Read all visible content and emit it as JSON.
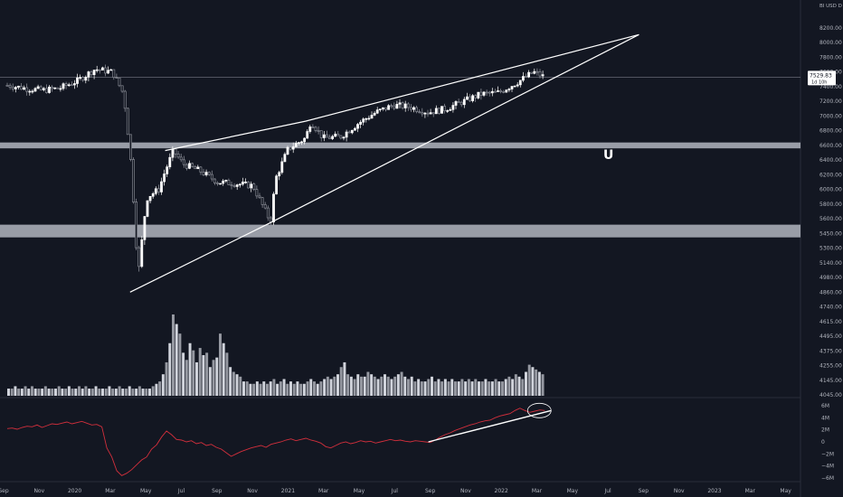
{
  "chart_data": [
    {
      "type": "candlestick",
      "axis_unit_label": "BI USD D",
      "y_ticks": [
        8200,
        8000,
        7800,
        7600,
        7400,
        7200,
        7000,
        6800,
        6600,
        6400,
        6200,
        6000,
        5800,
        5600,
        5450,
        5300,
        5140,
        4980,
        4860,
        4740,
        4615,
        4495,
        4375,
        4255,
        4145,
        4045
      ],
      "x_ticks": [
        "Sep",
        "Nov",
        "2020",
        "Mar",
        "May",
        "Jul",
        "Sep",
        "Nov",
        "2021",
        "Mar",
        "May",
        "Jul",
        "Sep",
        "Nov",
        "2022",
        "Mar",
        "May",
        "Jul",
        "Sep",
        "Nov",
        "2023",
        "Mar",
        "May"
      ],
      "last_price": "7529.83",
      "last_price_countdown": "1d 10h",
      "support_zones": [
        [
          6560,
          6640
        ],
        [
          5410,
          5540
        ]
      ],
      "marker_glyph": "U",
      "rising_wedge": {
        "upper": [
          [
            "2020-05",
            6530
          ],
          [
            "2021-01",
            6930
          ],
          [
            "2022-08",
            8110
          ]
        ],
        "lower": [
          [
            "2020-03",
            4860
          ],
          [
            "2020-11",
            5560
          ],
          [
            "2022-08",
            8110
          ]
        ]
      },
      "price_series": [
        [
          "2019-08",
          7420
        ],
        [
          "2019-09",
          7380
        ],
        [
          "2019-10",
          7350
        ],
        [
          "2019-11",
          7380
        ],
        [
          "2019-12",
          7480
        ],
        [
          "2020-01",
          7640
        ],
        [
          "2020-02",
          7600
        ],
        [
          "2020-02-20",
          7300
        ],
        [
          "2020-03",
          6500
        ],
        [
          "2020-03-10",
          5500
        ],
        [
          "2020-03-15",
          5000
        ],
        [
          "2020-03-25",
          5600
        ],
        [
          "2020-04",
          5900
        ],
        [
          "2020-04-20",
          6000
        ],
        [
          "2020-05",
          6250
        ],
        [
          "2020-05-15",
          6530
        ],
        [
          "2020-06",
          6350
        ],
        [
          "2020-07",
          6250
        ],
        [
          "2020-08",
          6100
        ],
        [
          "2020-09",
          6080
        ],
        [
          "2020-10",
          6050
        ],
        [
          "2020-11",
          5560
        ],
        [
          "2020-11-10",
          6150
        ],
        [
          "2020-12",
          6550
        ],
        [
          "2021-01",
          6700
        ],
        [
          "2021-01-10",
          6930
        ],
        [
          "2021-02",
          6700
        ],
        [
          "2021-03",
          6720
        ],
        [
          "2021-04",
          6900
        ],
        [
          "2021-05",
          7050
        ],
        [
          "2021-06",
          7150
        ],
        [
          "2021-07",
          7120
        ],
        [
          "2021-08",
          7050
        ],
        [
          "2021-09",
          7100
        ],
        [
          "2021-10",
          7200
        ],
        [
          "2021-11",
          7300
        ],
        [
          "2021-12",
          7320
        ],
        [
          "2022-01",
          7450
        ],
        [
          "2022-02",
          7600
        ],
        [
          "2022-02-20",
          7529.83
        ]
      ]
    },
    {
      "type": "bar",
      "name": "volume",
      "values": [
        3,
        3,
        4,
        3,
        3,
        4,
        3,
        4,
        3,
        3,
        3,
        4,
        3,
        3,
        3,
        4,
        3,
        3,
        4,
        3,
        3,
        4,
        3,
        4,
        3,
        3,
        4,
        3,
        3,
        3,
        4,
        3,
        3,
        4,
        3,
        3,
        4,
        3,
        3,
        4,
        3,
        3,
        3,
        4,
        5,
        6,
        9,
        14,
        22,
        34,
        30,
        26,
        18,
        15,
        22,
        19,
        14,
        20,
        17,
        18,
        12,
        15,
        16,
        26,
        22,
        18,
        12,
        10,
        9,
        8,
        6,
        6,
        5,
        5,
        6,
        5,
        6,
        5,
        6,
        7,
        5,
        6,
        7,
        5,
        6,
        5,
        6,
        5,
        5,
        6,
        7,
        6,
        5,
        6,
        7,
        8,
        7,
        8,
        9,
        12,
        14,
        9,
        8,
        7,
        9,
        8,
        8,
        10,
        9,
        8,
        7,
        8,
        9,
        8,
        7,
        8,
        9,
        10,
        8,
        7,
        8,
        6,
        7,
        6,
        6,
        7,
        8,
        6,
        7,
        6,
        7,
        6,
        7,
        6,
        6,
        7,
        6,
        7,
        6,
        7,
        6,
        6,
        7,
        6,
        6,
        7,
        6,
        6,
        7,
        8,
        7,
        9,
        8,
        7,
        10,
        13,
        12,
        11,
        10,
        9
      ]
    },
    {
      "type": "line",
      "name": "indicator",
      "y_ticks": [
        "6M",
        "4M",
        "2M",
        "0",
        "−2M",
        "−4M",
        "−6M"
      ],
      "ylim": [
        -6,
        6
      ],
      "values": [
        2.2,
        2.3,
        2.1,
        2.4,
        2.6,
        2.5,
        2.8,
        2.4,
        2.7,
        3.0,
        2.9,
        3.1,
        3.3,
        3.0,
        3.2,
        3.4,
        3.1,
        2.8,
        2.9,
        2.5,
        -1.0,
        -2.5,
        -4.8,
        -5.6,
        -5.2,
        -4.6,
        -3.8,
        -3.0,
        -2.5,
        -1.2,
        -0.5,
        0.8,
        1.8,
        1.2,
        0.4,
        0.3,
        0.0,
        0.2,
        -0.3,
        -0.1,
        -0.6,
        -0.4,
        -0.9,
        -1.2,
        -1.8,
        -2.4,
        -2.0,
        -1.6,
        -1.3,
        -1.0,
        -0.8,
        -0.6,
        -0.9,
        -0.4,
        -0.2,
        0.0,
        0.3,
        0.5,
        0.2,
        0.4,
        0.6,
        0.3,
        0.1,
        -0.2,
        -0.8,
        -1.0,
        -0.6,
        -0.2,
        0.0,
        -0.3,
        -0.1,
        0.2,
        0.0,
        0.1,
        -0.2,
        0.0,
        0.2,
        0.4,
        0.2,
        0.3,
        0.1,
        0.0,
        0.2,
        0.1,
        0.0,
        -0.1,
        0.3,
        0.8,
        1.2,
        1.5,
        1.9,
        2.2,
        2.5,
        2.8,
        3.0,
        3.3,
        3.5,
        3.6,
        4.0,
        4.3,
        4.5,
        4.7,
        5.2,
        5.6,
        5.2,
        4.9,
        5.1,
        5.3,
        5.2
      ],
      "trendline": [
        [
          "2021-08",
          0.0
        ],
        [
          "2022-03",
          5.2
        ]
      ]
    }
  ]
}
